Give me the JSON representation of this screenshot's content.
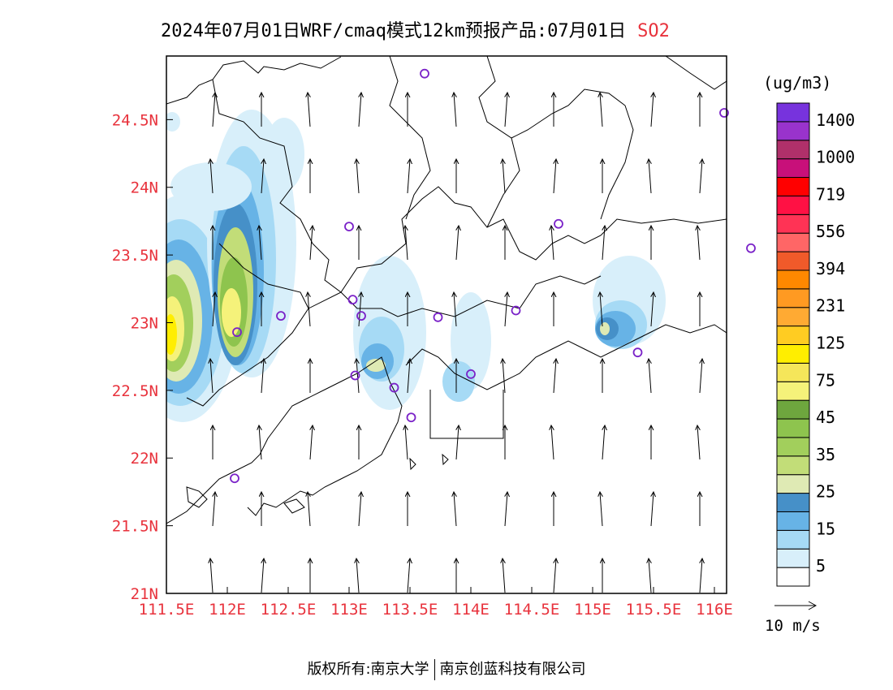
{
  "title": {
    "main": "2024年07月01日WRF/cmaq模式12km预报产品:07月01日",
    "species": "SO2"
  },
  "colorbar": {
    "unit": "(ug/m3)",
    "colors": [
      "#ffffff",
      "#d8effa",
      "#a6daf5",
      "#67b3e6",
      "#4690c8",
      "#dfeab4",
      "#c2dd78",
      "#a2cf5c",
      "#8ec44e",
      "#6ea63e",
      "#f5f27a",
      "#f5e65a",
      "#ffee00",
      "#ffcc22",
      "#ffaa33",
      "#ff9a22",
      "#ff8800",
      "#f05a2a",
      "#ff6666",
      "#ff3355",
      "#ff1144",
      "#ff0000",
      "#c8107a",
      "#b0306a",
      "#9933cc",
      "#7733dd"
    ],
    "labels": [
      "5",
      "15",
      "25",
      "35",
      "45",
      "75",
      "125",
      "231",
      "394",
      "556",
      "719",
      "1000",
      "1400"
    ]
  },
  "axes": {
    "lat_ticks": [
      "21N",
      "21.5N",
      "22N",
      "22.5N",
      "23N",
      "23.5N",
      "24N",
      "24.5N"
    ],
    "lon_ticks": [
      "111.5E",
      "112E",
      "112.5E",
      "113E",
      "113.5E",
      "114E",
      "114.5E",
      "115E",
      "115.5E",
      "116E"
    ],
    "tick_color": "#e8323c"
  },
  "wind": {
    "reference": "10 m/s"
  },
  "stations": [
    {
      "lon": 113.62,
      "lat": 24.84
    },
    {
      "lon": 116.08,
      "lat": 24.55
    },
    {
      "lon": 113.0,
      "lat": 23.71
    },
    {
      "lon": 114.72,
      "lat": 23.73
    },
    {
      "lon": 116.3,
      "lat": 23.55
    },
    {
      "lon": 113.03,
      "lat": 23.17
    },
    {
      "lon": 113.1,
      "lat": 23.05
    },
    {
      "lon": 112.44,
      "lat": 23.05
    },
    {
      "lon": 113.73,
      "lat": 23.04
    },
    {
      "lon": 114.37,
      "lat": 23.09
    },
    {
      "lon": 112.08,
      "lat": 22.93
    },
    {
      "lon": 115.37,
      "lat": 22.78
    },
    {
      "lon": 113.05,
      "lat": 22.61
    },
    {
      "lon": 113.37,
      "lat": 22.52
    },
    {
      "lon": 114.0,
      "lat": 22.62
    },
    {
      "lon": 113.51,
      "lat": 22.3
    },
    {
      "lon": 112.06,
      "lat": 21.85
    }
  ],
  "footer": {
    "left": "版权所有:南京大学",
    "right": "南京创蓝科技有限公司"
  }
}
